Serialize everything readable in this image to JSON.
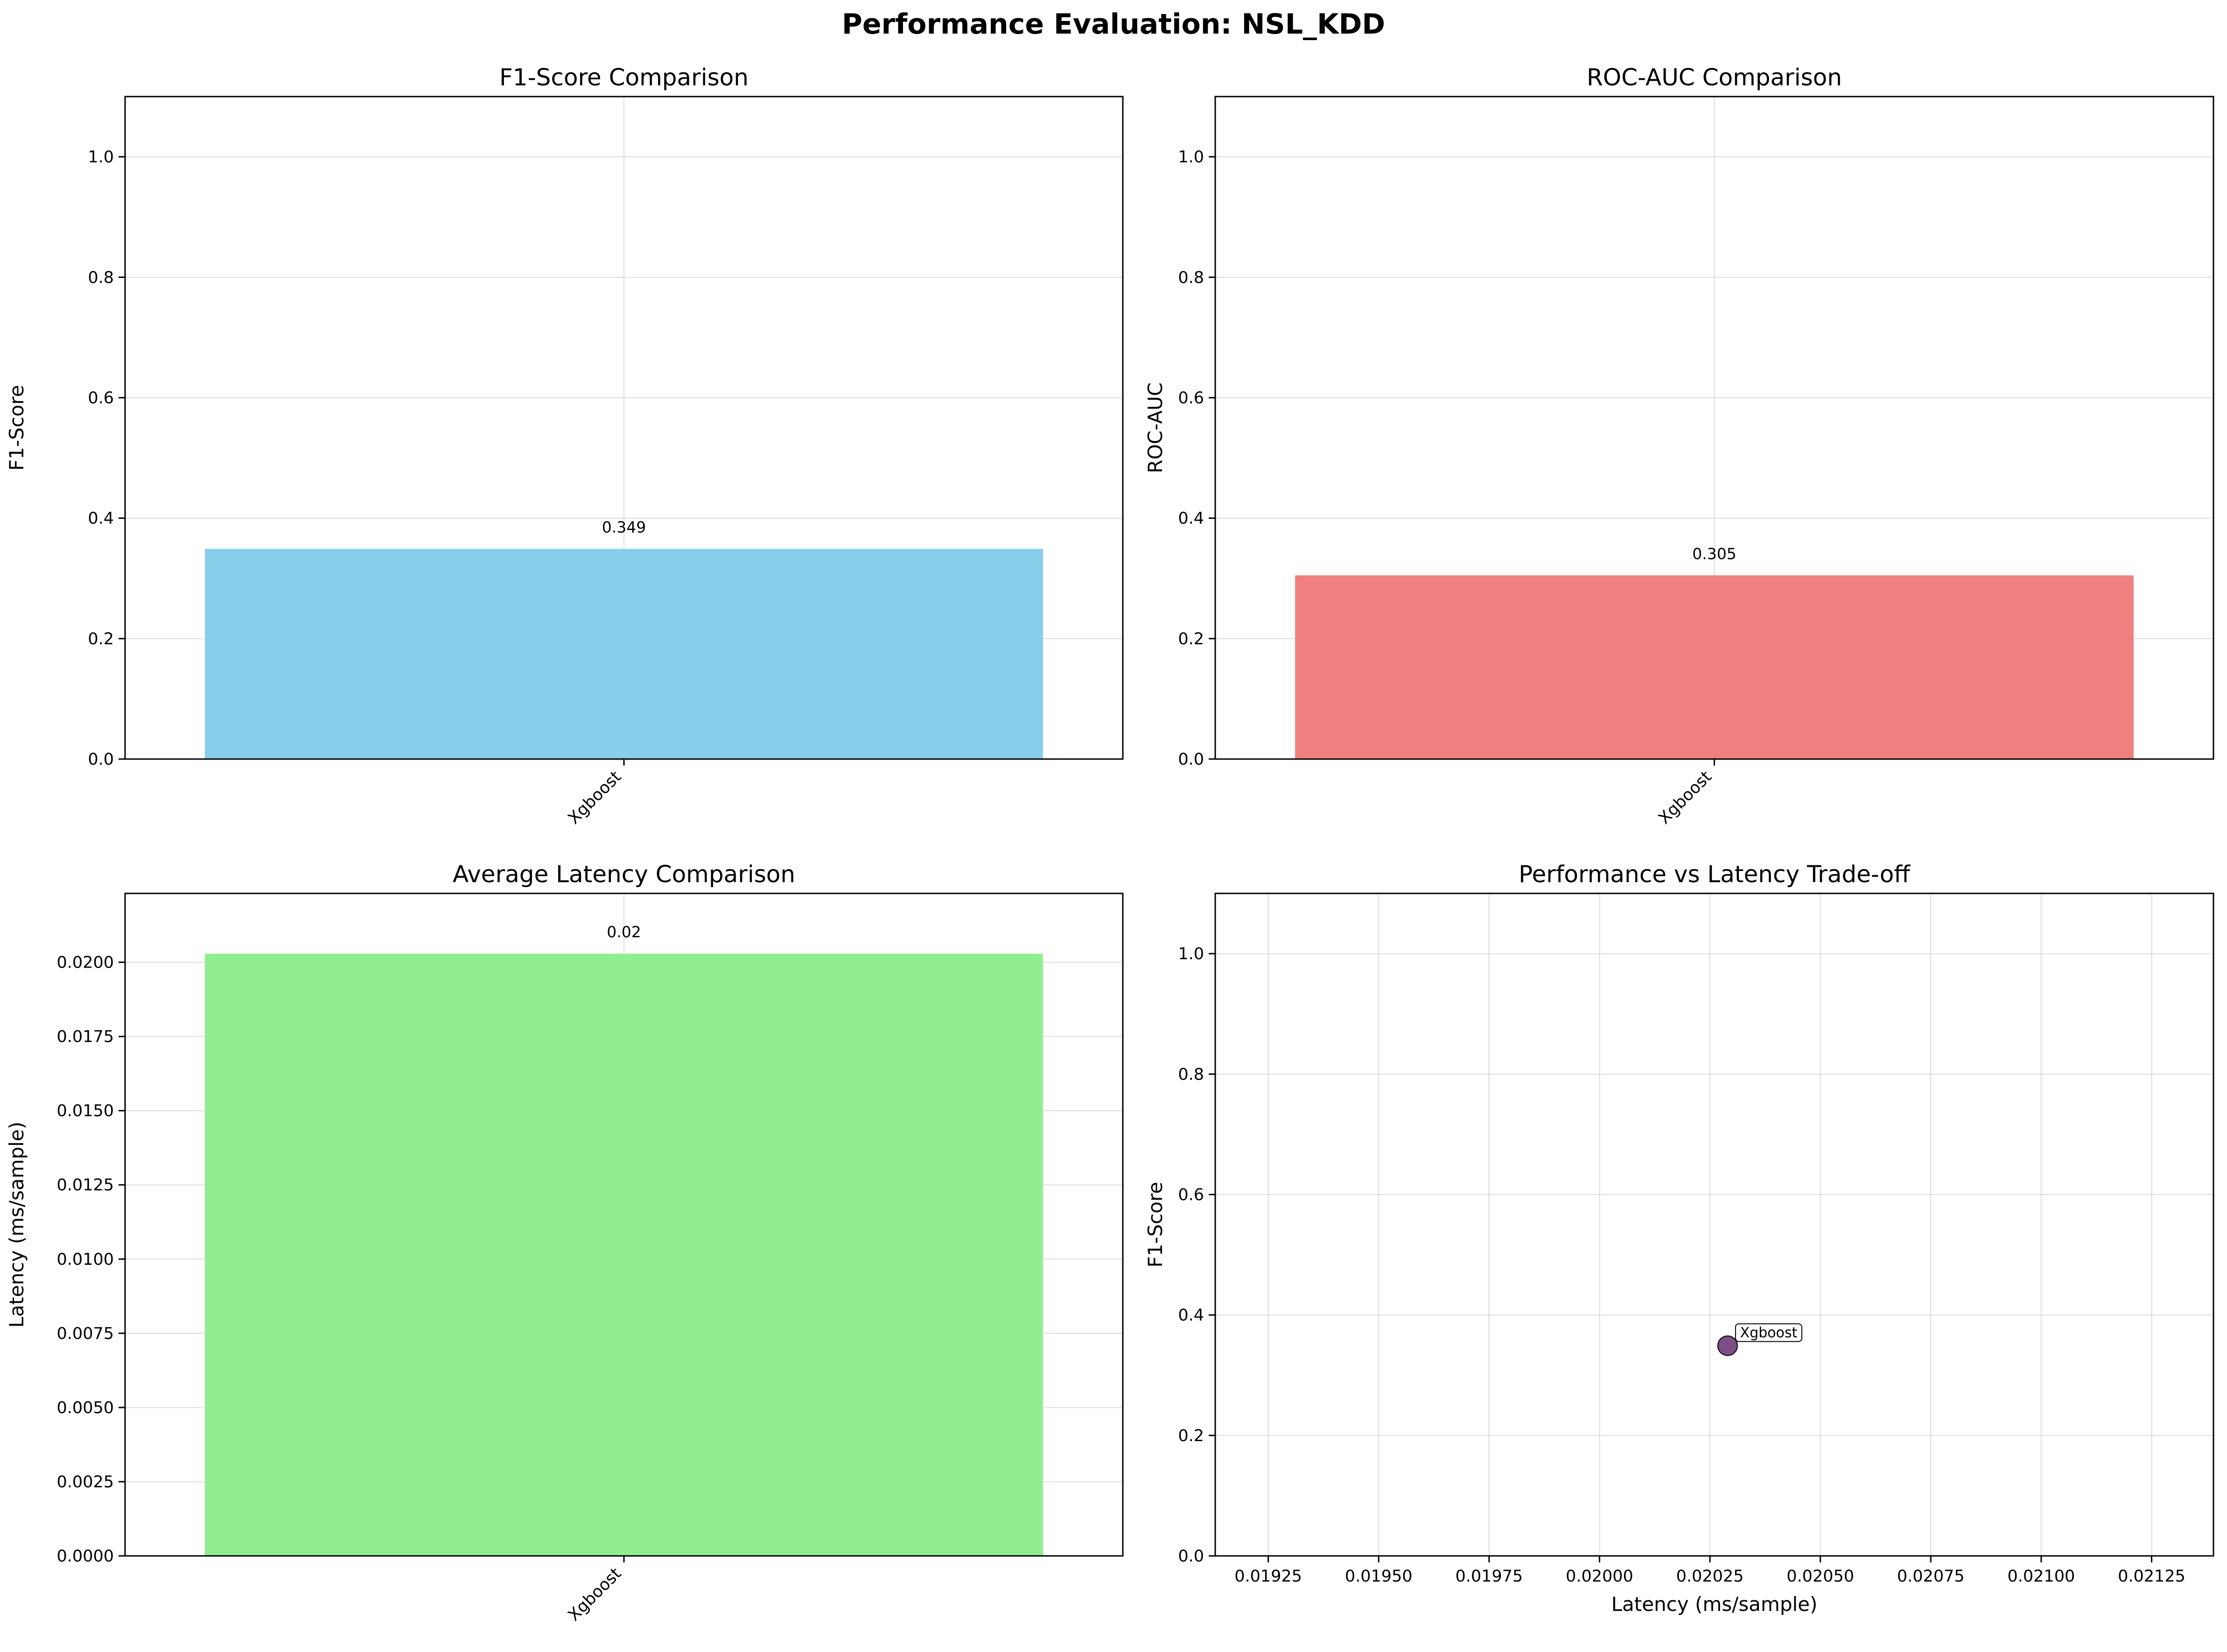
{
  "suptitle": "Performance Evaluation: NSL_KDD",
  "chart_data": [
    {
      "type": "bar",
      "title": "F1-Score Comparison",
      "xlabel": "",
      "ylabel": "F1-Score",
      "categories": [
        "Xgboost"
      ],
      "values": [
        0.349
      ],
      "value_labels": [
        "0.349"
      ],
      "ylim": [
        0,
        1.1
      ],
      "yticks": [
        0.0,
        0.2,
        0.4,
        0.6,
        0.8,
        1.0
      ],
      "ytick_labels": [
        "0.0",
        "0.2",
        "0.4",
        "0.6",
        "0.8",
        "1.0"
      ],
      "color": "#87ceeb",
      "grid": true
    },
    {
      "type": "bar",
      "title": "ROC-AUC Comparison",
      "xlabel": "",
      "ylabel": "ROC-AUC",
      "categories": [
        "Xgboost"
      ],
      "values": [
        0.305
      ],
      "value_labels": [
        "0.305"
      ],
      "ylim": [
        0,
        1.1
      ],
      "yticks": [
        0.0,
        0.2,
        0.4,
        0.6,
        0.8,
        1.0
      ],
      "ytick_labels": [
        "0.0",
        "0.2",
        "0.4",
        "0.6",
        "0.8",
        "1.0"
      ],
      "color": "#f08080",
      "grid": true
    },
    {
      "type": "bar",
      "title": "Average Latency Comparison",
      "xlabel": "",
      "ylabel": "Latency (ms/sample)",
      "categories": [
        "Xgboost"
      ],
      "values": [
        0.02029
      ],
      "value_labels": [
        "0.02"
      ],
      "ylim": [
        0,
        0.02232
      ],
      "yticks": [
        0.0,
        0.0025,
        0.005,
        0.0075,
        0.01,
        0.0125,
        0.015,
        0.0175,
        0.02
      ],
      "ytick_labels": [
        "0.0000",
        "0.0025",
        "0.0050",
        "0.0075",
        "0.0100",
        "0.0125",
        "0.0150",
        "0.0175",
        "0.0200"
      ],
      "color": "#90ee90",
      "grid": true
    },
    {
      "type": "scatter",
      "title": "Performance vs Latency Trade-off",
      "xlabel": "Latency (ms/sample)",
      "ylabel": "F1-Score",
      "points": [
        {
          "label": "Xgboost",
          "x": 0.02029,
          "y": 0.349
        }
      ],
      "xlim": [
        0.01913,
        0.02139
      ],
      "ylim": [
        0,
        1.1
      ],
      "xticks": [
        0.01925,
        0.0195,
        0.01975,
        0.02,
        0.02025,
        0.0205,
        0.02075,
        0.021,
        0.02125
      ],
      "xtick_labels": [
        "0.01925",
        "0.01950",
        "0.01975",
        "0.02000",
        "0.02025",
        "0.02050",
        "0.02075",
        "0.02100",
        "0.02125"
      ],
      "yticks": [
        0.0,
        0.2,
        0.4,
        0.6,
        0.8,
        1.0
      ],
      "ytick_labels": [
        "0.0",
        "0.2",
        "0.4",
        "0.6",
        "0.8",
        "1.0"
      ],
      "color": "#440154",
      "grid": true
    }
  ]
}
